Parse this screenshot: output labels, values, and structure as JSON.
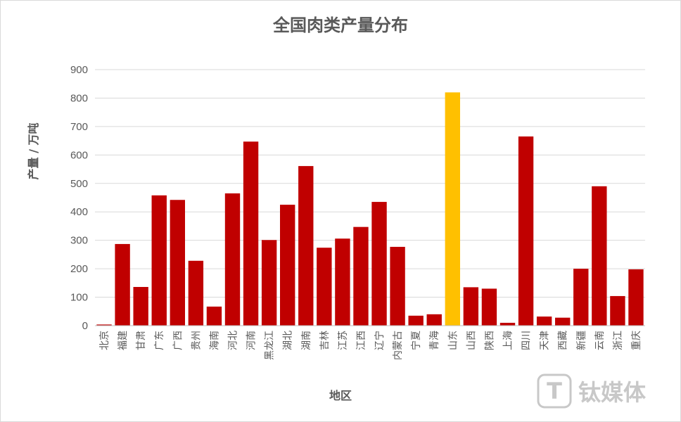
{
  "chart_data": {
    "type": "bar",
    "title": "全国肉类产量分布",
    "xlabel": "地区",
    "ylabel": "产量 / 万吨",
    "ylim": [
      0,
      900
    ],
    "yticks": [
      0,
      100,
      200,
      300,
      400,
      500,
      600,
      700,
      800,
      900
    ],
    "grid": true,
    "categories": [
      "北京",
      "福建",
      "甘肃",
      "广东",
      "广西",
      "贵州",
      "海南",
      "河北",
      "河南",
      "黑龙江",
      "湖北",
      "湖南",
      "吉林",
      "江苏",
      "江西",
      "辽宁",
      "内蒙古",
      "宁夏",
      "青海",
      "山东",
      "山西",
      "陕西",
      "上海",
      "四川",
      "天津",
      "西藏",
      "新疆",
      "云南",
      "浙江",
      "重庆"
    ],
    "values": [
      4,
      287,
      136,
      458,
      442,
      228,
      67,
      465,
      647,
      301,
      425,
      561,
      274,
      306,
      347,
      435,
      277,
      35,
      40,
      820,
      135,
      130,
      10,
      665,
      32,
      28,
      200,
      490,
      104,
      198
    ],
    "bar_color": "#c00000",
    "highlight": {
      "category": "山东",
      "color": "#ffc000"
    }
  },
  "watermark": {
    "text": "钛媒体",
    "logo_glyph": "T"
  }
}
